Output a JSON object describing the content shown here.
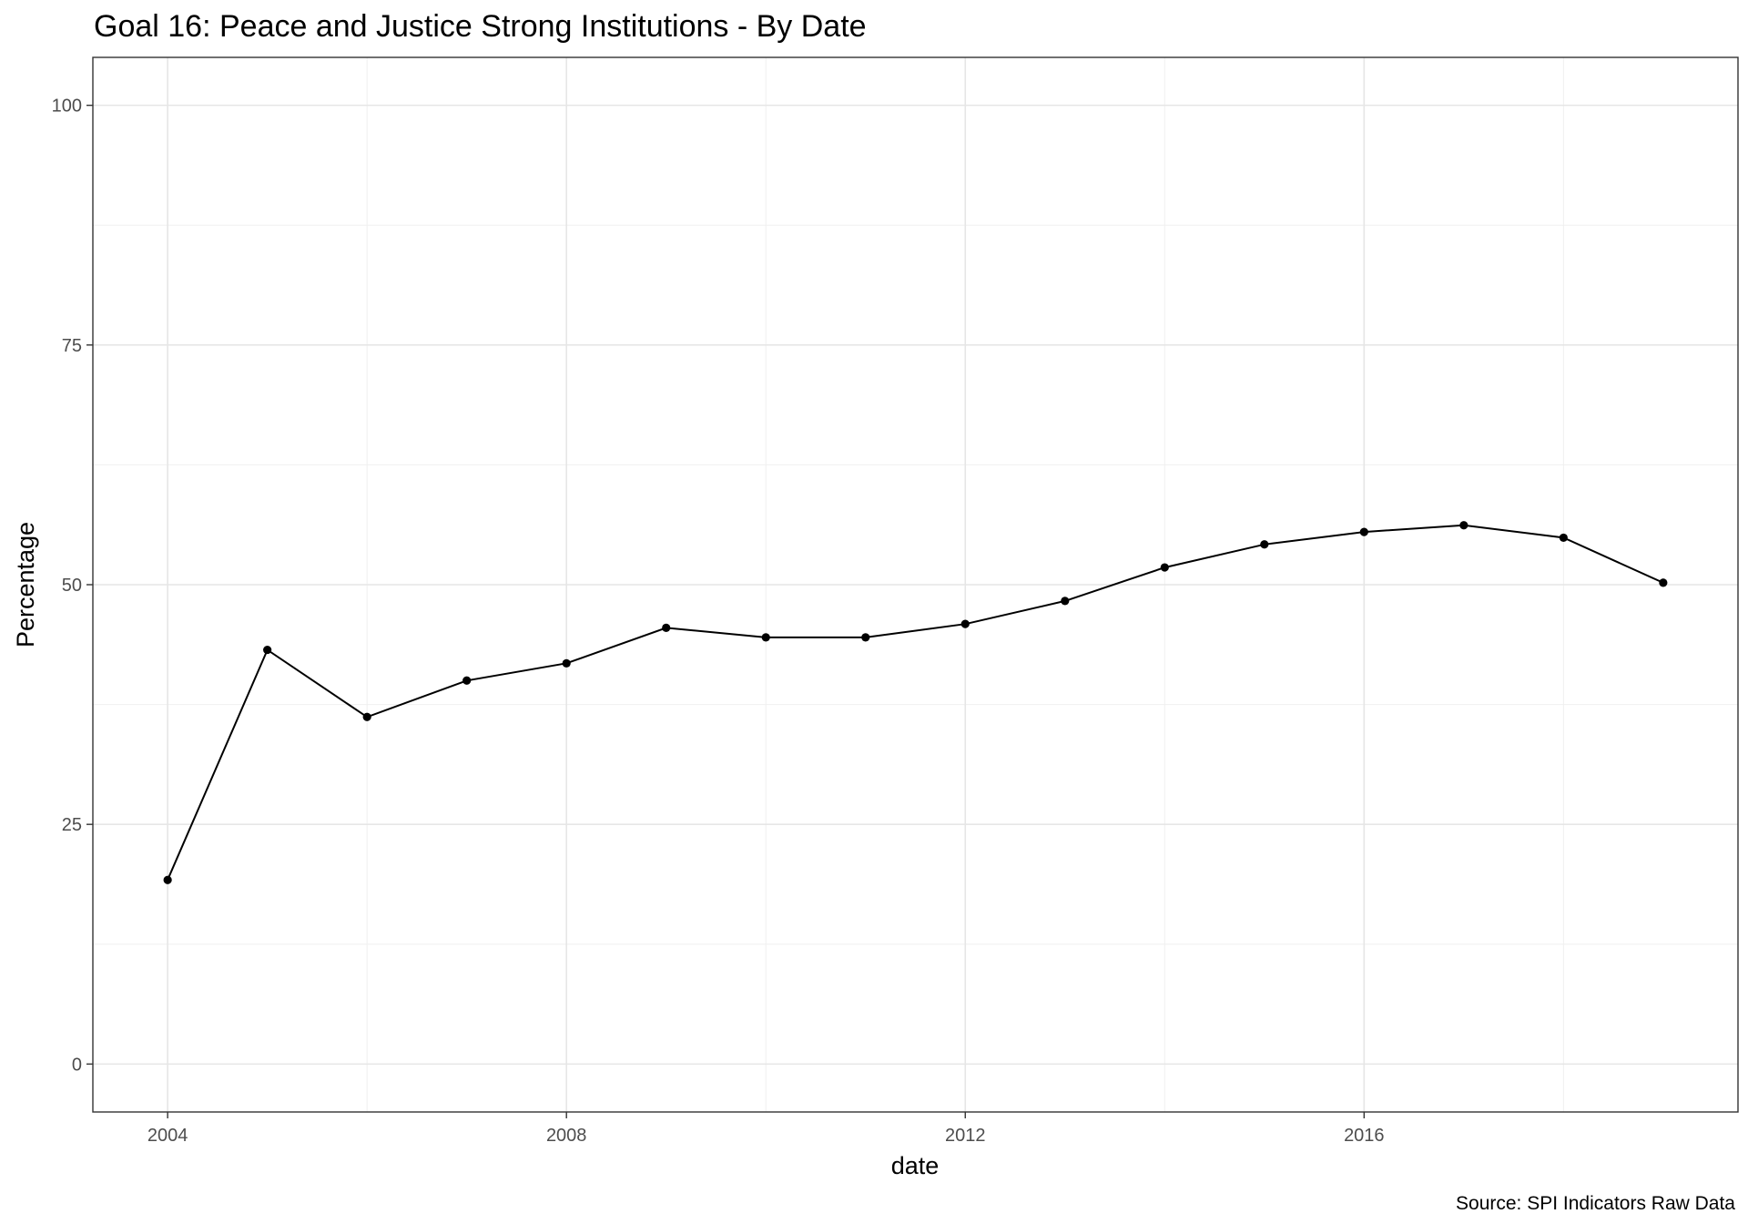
{
  "chart_data": {
    "type": "line",
    "title": "Goal 16: Peace and Justice Strong Institutions - By Date",
    "xlabel": "date",
    "ylabel": "Percentage",
    "caption": "Source: SPI Indicators Raw Data",
    "x_ticks": [
      "2004",
      "2008",
      "2012",
      "2016"
    ],
    "y_ticks": [
      "0",
      "25",
      "50",
      "75",
      "100"
    ],
    "xlim": [
      2003.25,
      2019.75
    ],
    "ylim": [
      -5,
      105
    ],
    "grid": true,
    "legend": "none",
    "series": [
      {
        "x": [
          2004,
          2005,
          2006,
          2007,
          2008,
          2009,
          2010,
          2011,
          2012,
          2013,
          2014,
          2015,
          2016,
          2017,
          2018,
          2019
        ],
        "y": [
          19.2,
          43.2,
          36.2,
          40.0,
          41.8,
          45.5,
          44.5,
          44.5,
          45.9,
          48.3,
          51.8,
          54.2,
          55.5,
          56.2,
          54.9,
          50.2
        ]
      }
    ],
    "colors": {
      "line": "#000000",
      "point": "#000000",
      "panel_border": "#333333",
      "grid": "#e6e6e6"
    }
  }
}
